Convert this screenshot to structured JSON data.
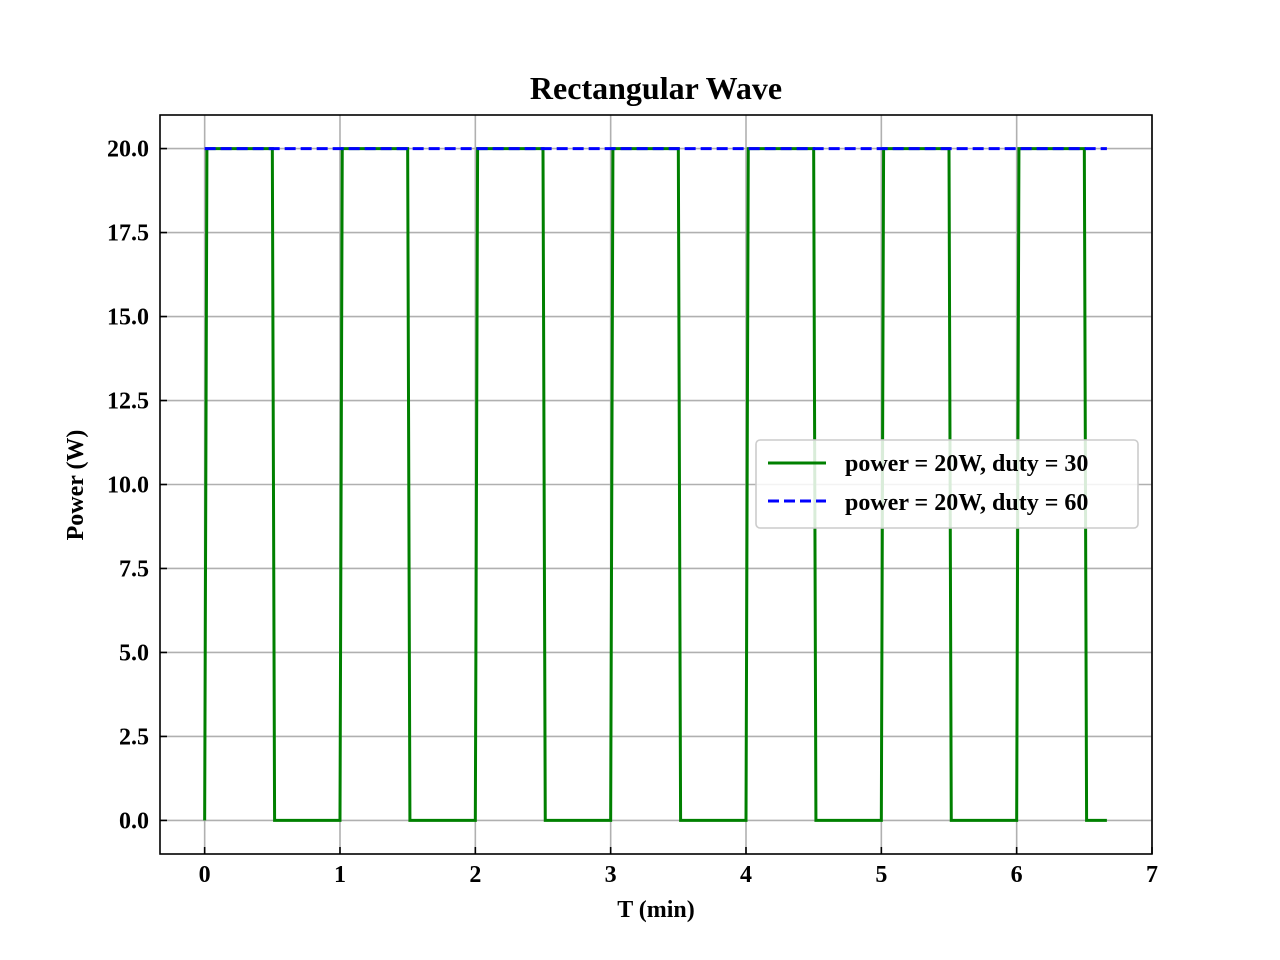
{
  "chart_data": {
    "type": "line",
    "title": "Rectangular Wave",
    "xlabel": "T (min)",
    "ylabel": "Power (W)",
    "xlim": [
      -0.33,
      7.0
    ],
    "ylim": [
      -1.0,
      21.0
    ],
    "xticks": [
      0,
      1,
      2,
      3,
      4,
      5,
      6,
      7
    ],
    "xtick_labels": [
      "0",
      "1",
      "2",
      "3",
      "4",
      "5",
      "6",
      "7"
    ],
    "yticks": [
      0.0,
      2.5,
      5.0,
      7.5,
      10.0,
      12.5,
      15.0,
      17.5,
      20.0
    ],
    "ytick_labels": [
      "0.0",
      "2.5",
      "5.0",
      "7.5",
      "10.0",
      "12.5",
      "15.0",
      "17.5",
      "20.0"
    ],
    "grid": true,
    "legend_position": "center-right",
    "series": [
      {
        "name": "power = 20W, duty = 30",
        "color": "#008000",
        "style": "solid",
        "x": [
          0.0,
          0.0167,
          0.5,
          0.5167,
          1.0,
          1.0167,
          1.5,
          1.5167,
          2.0,
          2.0167,
          2.5,
          2.5167,
          3.0,
          3.0167,
          3.5,
          3.5167,
          4.0,
          4.0167,
          4.5,
          4.5167,
          5.0,
          5.0167,
          5.5,
          5.5167,
          6.0,
          6.0167,
          6.5,
          6.5167,
          6.6667
        ],
        "y": [
          0,
          20,
          20,
          0,
          0,
          20,
          20,
          0,
          0,
          20,
          20,
          0,
          0,
          20,
          20,
          0,
          0,
          20,
          20,
          0,
          0,
          20,
          20,
          0,
          0,
          20,
          20,
          0,
          0
        ]
      },
      {
        "name": "power = 20W, duty = 60",
        "color": "#0000ff",
        "style": "dashed",
        "x": [
          0.0,
          6.6667
        ],
        "y": [
          20,
          20
        ]
      }
    ]
  }
}
